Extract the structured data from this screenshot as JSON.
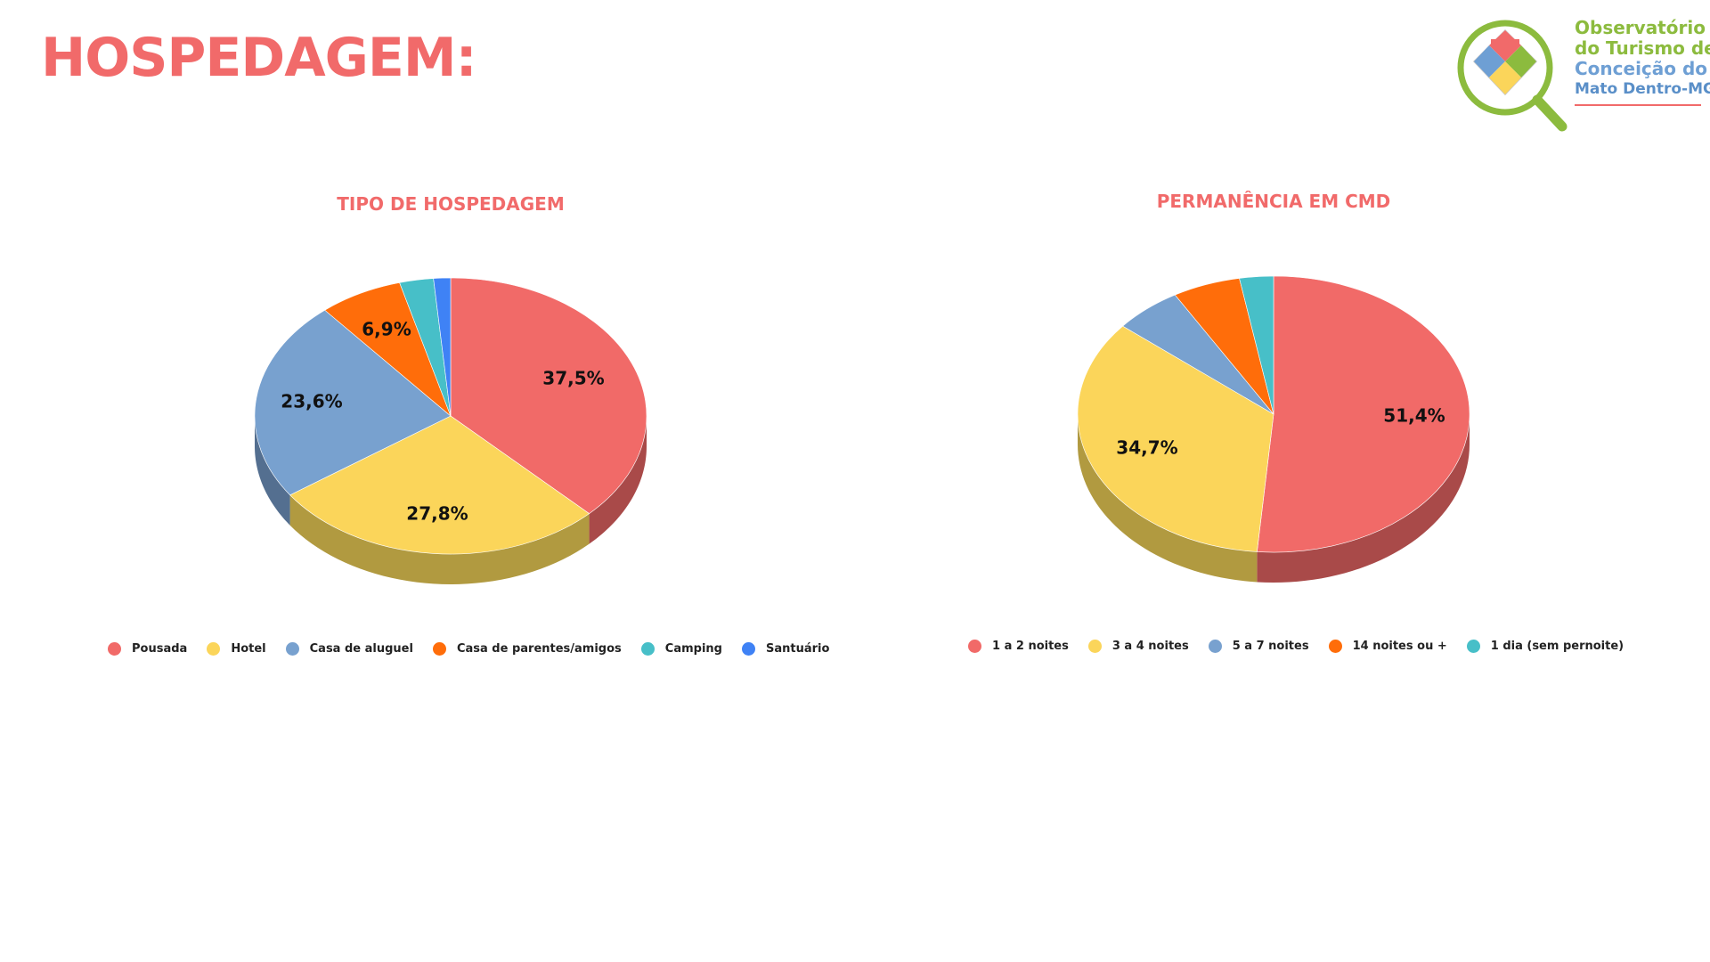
{
  "page": {
    "title": "HOSPEDAGEM:"
  },
  "logo": {
    "lines": [
      "Observatório",
      "do Turismo de",
      "Conceição do",
      "Mato Dentro-MG"
    ]
  },
  "chart_data": [
    {
      "type": "pie",
      "title": "TIPO DE HOSPEDAGEM",
      "legend_position": "bottom",
      "categories": [
        "Pousada",
        "Hotel",
        "Casa de aluguel",
        "Casa de parentes/amigos",
        "Camping",
        "Santuário"
      ],
      "values": [
        37.5,
        27.8,
        23.6,
        6.9,
        2.8,
        1.4
      ],
      "data_labels": [
        "37,5%",
        "27,8%",
        "23,6%",
        "6,9%",
        "",
        ""
      ],
      "colors": [
        "#f16a68",
        "#fbd55a",
        "#78a1cf",
        "#ff6d0a",
        "#47bfc8",
        "#3f82f5"
      ],
      "side_colors": [
        "#a94a49",
        "#b19a40",
        "#546f90",
        "#b34d08",
        "#32868c",
        "#2c5bab"
      ]
    },
    {
      "type": "pie",
      "title": "PERMANÊNCIA EM CMD",
      "legend_position": "bottom",
      "categories": [
        "1 a 2 noites",
        "3 a 4 noites",
        "5 a 7 noites",
        "14 noites ou +",
        "1 dia (sem pernoite)"
      ],
      "values": [
        51.4,
        34.7,
        5.6,
        5.6,
        2.8
      ],
      "data_labels": [
        "51,4%",
        "34,7%",
        "",
        "",
        ""
      ],
      "colors": [
        "#f16a68",
        "#fbd55a",
        "#78a1cf",
        "#ff6d0a",
        "#47bfc8"
      ],
      "side_colors": [
        "#a94a49",
        "#b19a40",
        "#546f90",
        "#b34d08",
        "#32868c"
      ]
    }
  ]
}
